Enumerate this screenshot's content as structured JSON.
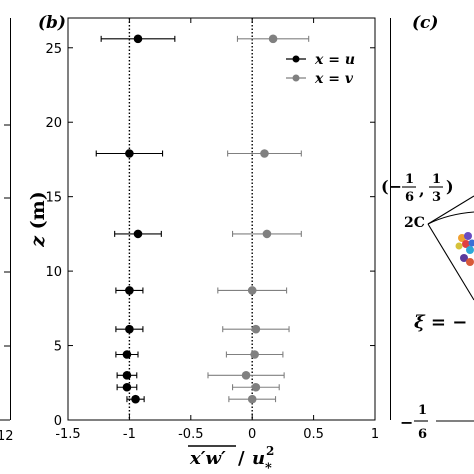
{
  "panels": {
    "a_edge": {
      "xtick_right": "12"
    },
    "b": {
      "label": "(b)"
    },
    "c": {
      "label": "(c)",
      "point_label": "2C",
      "point_coord_prefix": "(−",
      "point_coord_n1": "1",
      "point_coord_d1": "6",
      "point_coord_sep": ",",
      "point_coord_n2": "1",
      "point_coord_d2": "3",
      "point_coord_suffix": ")",
      "xi_text": "ξ = −",
      "bottom_minus": "−",
      "bottom_num": "1",
      "bottom_den": "6"
    }
  },
  "chart_data": {
    "type": "scatter",
    "xlabel": "x′w′ / u*²",
    "ylabel": "z (m)",
    "xlim": [
      -1.5,
      1
    ],
    "ylim": [
      0,
      27
    ],
    "xticks": [
      "-1.5",
      "-1",
      "-0.5",
      "0",
      "0.5",
      "1"
    ],
    "xtick_values": [
      -1.5,
      -1,
      -0.5,
      0,
      0.5,
      1
    ],
    "yticks": [
      "0",
      "5",
      "10",
      "15",
      "20",
      "25"
    ],
    "ytick_values": [
      0,
      5,
      10,
      15,
      20,
      25
    ],
    "reference_lines": [
      -1,
      0
    ],
    "legend": {
      "position": "top-right"
    },
    "series": [
      {
        "name": "x = u",
        "color": "#000000",
        "points": [
          {
            "x": -0.93,
            "y": 25.6,
            "xerr": 0.3
          },
          {
            "x": -1.0,
            "y": 17.9,
            "xerr": 0.27
          },
          {
            "x": -0.93,
            "y": 12.5,
            "xerr": 0.19
          },
          {
            "x": -1.0,
            "y": 8.7,
            "xerr": 0.11
          },
          {
            "x": -1.0,
            "y": 6.1,
            "xerr": 0.11
          },
          {
            "x": -1.02,
            "y": 4.4,
            "xerr": 0.09
          },
          {
            "x": -1.02,
            "y": 3.0,
            "xerr": 0.08
          },
          {
            "x": -1.02,
            "y": 2.2,
            "xerr": 0.08
          },
          {
            "x": -0.95,
            "y": 1.4,
            "xerr": 0.07
          }
        ]
      },
      {
        "name": "x = v",
        "color": "#808080",
        "points": [
          {
            "x": 0.17,
            "y": 25.6,
            "xerr": 0.29
          },
          {
            "x": 0.1,
            "y": 17.9,
            "xerr": 0.3
          },
          {
            "x": 0.12,
            "y": 12.5,
            "xerr": 0.28
          },
          {
            "x": 0.0,
            "y": 8.7,
            "xerr": 0.28
          },
          {
            "x": 0.03,
            "y": 6.1,
            "xerr": 0.27
          },
          {
            "x": 0.02,
            "y": 4.4,
            "xerr": 0.23
          },
          {
            "x": -0.05,
            "y": 3.0,
            "xerr": 0.31
          },
          {
            "x": 0.03,
            "y": 2.2,
            "xerr": 0.19
          },
          {
            "x": 0.0,
            "y": 1.4,
            "xerr": 0.19
          }
        ]
      }
    ]
  }
}
